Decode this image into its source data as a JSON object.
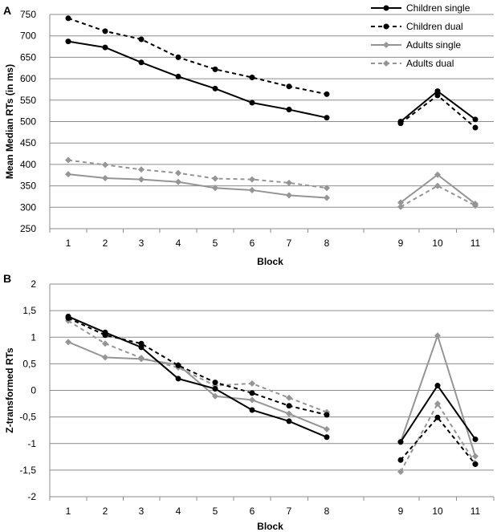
{
  "chart_data": [
    {
      "panel_label": "A",
      "type": "line",
      "ylabel": "Mean Median RTs (in ms)",
      "xlabel": "Block",
      "ylim": [
        250,
        750
      ],
      "yticks": [
        250,
        300,
        350,
        400,
        450,
        500,
        550,
        600,
        650,
        700,
        750
      ],
      "ytick_labels": [
        "250",
        "300",
        "350",
        "400",
        "450",
        "500",
        "550",
        "600",
        "650",
        "700",
        "750"
      ],
      "grid": true,
      "legend_position": "top-right",
      "categories": [
        "1",
        "2",
        "3",
        "4",
        "5",
        "6",
        "7",
        "8",
        "9",
        "10",
        "11"
      ],
      "series": [
        {
          "name": "Children single",
          "color": "#000000",
          "dashed": false,
          "marker": "circle",
          "values": [
            687,
            673,
            638,
            605,
            577,
            544,
            528,
            509,
            500,
            571,
            505
          ]
        },
        {
          "name": "Children dual",
          "color": "#000000",
          "dashed": true,
          "marker": "circle",
          "values": [
            741,
            711,
            692,
            650,
            622,
            603,
            582,
            564,
            496,
            561,
            486
          ]
        },
        {
          "name": "Adults single",
          "color": "#959595",
          "dashed": false,
          "marker": "diamond",
          "values": [
            377,
            368,
            365,
            359,
            345,
            340,
            328,
            322,
            311,
            376,
            308
          ]
        },
        {
          "name": "Adults dual",
          "color": "#959595",
          "dashed": true,
          "marker": "diamond",
          "values": [
            410,
            399,
            388,
            380,
            367,
            365,
            357,
            345,
            301,
            350,
            304
          ]
        }
      ]
    },
    {
      "panel_label": "B",
      "type": "line",
      "ylabel": "Z-transformed RTs",
      "xlabel": "Block",
      "ylim": [
        -2,
        2
      ],
      "yticks": [
        -2,
        -1.5,
        -1,
        -0.5,
        0,
        0.5,
        1,
        1.5,
        2
      ],
      "ytick_labels": [
        "-2",
        "-1,5",
        "-1",
        "-0,5",
        "0",
        "0,5",
        "1",
        "1,5",
        "2"
      ],
      "grid": true,
      "categories": [
        "1",
        "2",
        "3",
        "4",
        "5",
        "6",
        "7",
        "8",
        "9",
        "10",
        "11"
      ],
      "series": [
        {
          "name": "Children single",
          "color": "#000000",
          "dashed": false,
          "marker": "circle",
          "values": [
            1.39,
            1.09,
            0.81,
            0.22,
            0.03,
            -0.37,
            -0.58,
            -0.88,
            -0.97,
            0.09,
            -0.92
          ]
        },
        {
          "name": "Children dual",
          "color": "#000000",
          "dashed": true,
          "marker": "circle",
          "values": [
            1.36,
            1.04,
            0.88,
            0.47,
            0.15,
            -0.05,
            -0.29,
            -0.46,
            -1.31,
            -0.51,
            -1.39
          ]
        },
        {
          "name": "Adults single",
          "color": "#959595",
          "dashed": false,
          "marker": "diamond",
          "values": [
            0.91,
            0.62,
            0.59,
            0.48,
            -0.11,
            -0.18,
            -0.44,
            -0.73,
            -0.97,
            1.03,
            -1.24
          ]
        },
        {
          "name": "Adults dual",
          "color": "#959595",
          "dashed": true,
          "marker": "diamond",
          "values": [
            1.31,
            0.88,
            0.61,
            0.43,
            0.09,
            0.13,
            -0.14,
            -0.41,
            -1.53,
            -0.25,
            -1.37
          ]
        }
      ]
    }
  ]
}
